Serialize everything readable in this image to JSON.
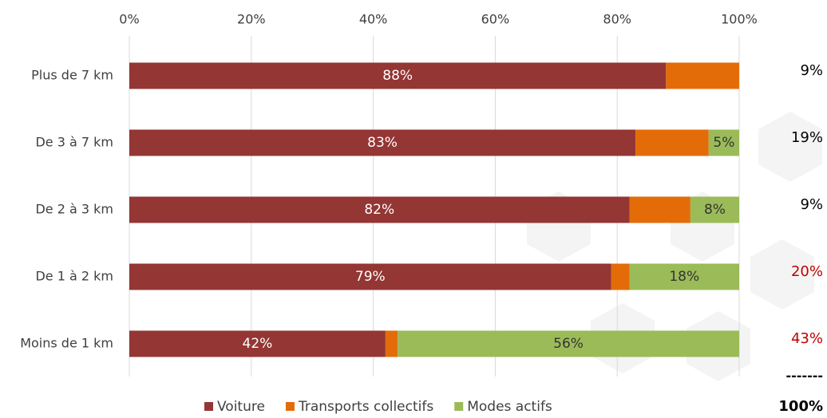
{
  "chart_data": {
    "type": "stacked-barh",
    "categories": [
      "Plus de 7 km",
      "De 3 à 7 km",
      "De 2 à 3 km",
      "De 1 à 2 km",
      "Moins de 1 km"
    ],
    "series": [
      {
        "name": "Voiture",
        "color": "#943634",
        "label_color": "#ffffff",
        "values": [
          88,
          83,
          82,
          79,
          42
        ],
        "value_labels": [
          "88%",
          "83%",
          "82%",
          "79%",
          "42%"
        ]
      },
      {
        "name": "Transports collectifs",
        "color": "#e36c09",
        "values": [
          12,
          12,
          10,
          3,
          2
        ]
      },
      {
        "name": "Modes actifs",
        "color": "#9bbb59",
        "label_color": "#333333",
        "values": [
          0,
          5,
          8,
          18,
          56
        ],
        "value_labels": [
          null,
          "5%",
          "8%",
          "18%",
          "56%"
        ]
      }
    ],
    "xlim": [
      0,
      100
    ],
    "xticks": [
      {
        "value": 0,
        "label": "0%"
      },
      {
        "value": 20,
        "label": "20%"
      },
      {
        "value": 40,
        "label": "40%"
      },
      {
        "value": 60,
        "label": "60%"
      },
      {
        "value": 80,
        "label": "80%"
      },
      {
        "value": 100,
        "label": "100%"
      }
    ],
    "grid": true,
    "shares": {
      "values": [
        9,
        19,
        9,
        20,
        43
      ],
      "value_labels": [
        "9%",
        "19%",
        "9%",
        "20%",
        "43%"
      ],
      "colors": [
        "#000000",
        "#000000",
        "#000000",
        "#c00000",
        "#c00000"
      ]
    },
    "separator": "-------",
    "total": {
      "value": 100,
      "label": "100%"
    }
  }
}
